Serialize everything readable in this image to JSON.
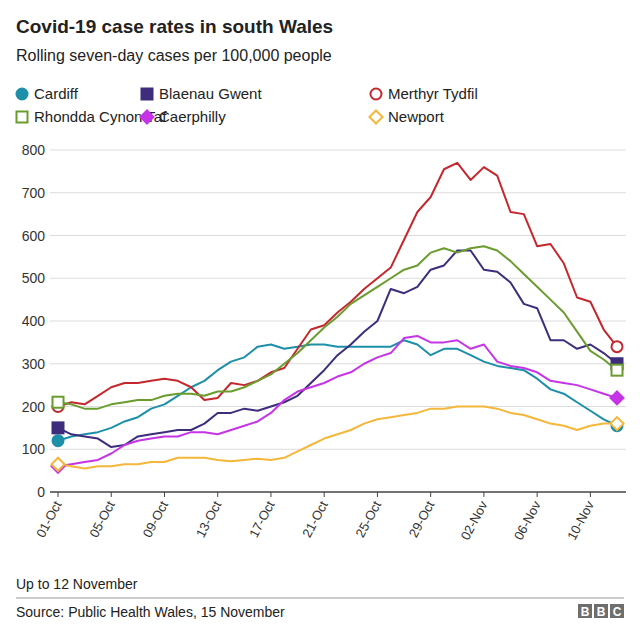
{
  "chart_data": {
    "type": "line",
    "title": "Covid-19 case rates in south Wales",
    "subtitle": "Rolling seven-day cases per 100,000 people",
    "note": "Up to 12 November",
    "source": "Source: Public Health Wales, 15 November",
    "logo": "BBC",
    "categories": [
      "01-Oct",
      null,
      null,
      null,
      "05-Oct",
      null,
      null,
      null,
      "09-Oct",
      null,
      null,
      null,
      "13-Oct",
      null,
      null,
      null,
      "17-Oct",
      null,
      null,
      null,
      "21-Oct",
      null,
      null,
      null,
      "25-Oct",
      null,
      null,
      null,
      "29-Oct",
      null,
      null,
      null,
      "02-Nov",
      null,
      null,
      null,
      "06-Nov",
      null,
      null,
      null,
      "10-Nov",
      null,
      null
    ],
    "ylim": [
      0,
      800
    ],
    "yticks": [
      0,
      100,
      200,
      300,
      400,
      500,
      600,
      700,
      800
    ],
    "grid": true,
    "legend": "top",
    "series": [
      {
        "name": "Cardiff",
        "color": "#1d8fa9",
        "marker": "circle",
        "values": [
          120,
          130,
          135,
          140,
          150,
          165,
          175,
          195,
          205,
          225,
          245,
          260,
          285,
          305,
          315,
          340,
          345,
          335,
          340,
          345,
          345,
          340,
          340,
          340,
          340,
          340,
          355,
          345,
          320,
          335,
          335,
          320,
          305,
          295,
          290,
          285,
          265,
          240,
          230,
          210,
          190,
          170,
          155
        ]
      },
      {
        "name": "Blaenau Gwent",
        "color": "#3e2d7c",
        "marker": "square",
        "values": [
          150,
          135,
          130,
          125,
          105,
          110,
          130,
          135,
          140,
          145,
          145,
          160,
          185,
          185,
          195,
          190,
          200,
          210,
          225,
          255,
          285,
          320,
          345,
          375,
          400,
          475,
          465,
          480,
          520,
          530,
          565,
          565,
          520,
          515,
          490,
          440,
          430,
          355,
          355,
          335,
          345,
          325,
          300
        ]
      },
      {
        "name": "Merthyr Tydfil",
        "color": "#c4282e",
        "marker": "circle-open",
        "values": [
          200,
          210,
          205,
          225,
          245,
          255,
          255,
          260,
          265,
          260,
          245,
          215,
          220,
          255,
          250,
          260,
          280,
          290,
          335,
          380,
          390,
          420,
          445,
          475,
          500,
          525,
          590,
          655,
          690,
          755,
          770,
          730,
          760,
          740,
          655,
          650,
          575,
          580,
          535,
          455,
          445,
          380,
          340
        ]
      },
      {
        "name": "Rhondda Cynon Taf",
        "color": "#6a9c2e",
        "marker": "square-open",
        "values": [
          210,
          205,
          195,
          195,
          205,
          210,
          215,
          215,
          225,
          230,
          230,
          225,
          235,
          235,
          245,
          260,
          275,
          300,
          325,
          355,
          385,
          410,
          440,
          460,
          480,
          500,
          520,
          530,
          560,
          570,
          560,
          570,
          575,
          565,
          540,
          510,
          480,
          450,
          420,
          375,
          330,
          310,
          285
        ]
      },
      {
        "name": "Caerphilly",
        "color": "#c534e6",
        "marker": "diamond",
        "values": [
          60,
          65,
          70,
          75,
          90,
          110,
          120,
          125,
          130,
          130,
          140,
          140,
          135,
          145,
          155,
          165,
          185,
          215,
          235,
          245,
          255,
          270,
          280,
          300,
          315,
          325,
          360,
          365,
          350,
          350,
          355,
          335,
          345,
          305,
          295,
          290,
          280,
          260,
          255,
          250,
          240,
          230,
          220
        ]
      },
      {
        "name": "Newport",
        "color": "#f4b73a",
        "marker": "diamond-open",
        "values": [
          65,
          60,
          55,
          60,
          60,
          65,
          65,
          70,
          70,
          80,
          80,
          80,
          75,
          72,
          75,
          78,
          75,
          80,
          95,
          110,
          125,
          135,
          145,
          160,
          170,
          175,
          180,
          185,
          195,
          195,
          200,
          200,
          200,
          195,
          185,
          180,
          170,
          160,
          155,
          145,
          155,
          160,
          160
        ]
      }
    ]
  }
}
